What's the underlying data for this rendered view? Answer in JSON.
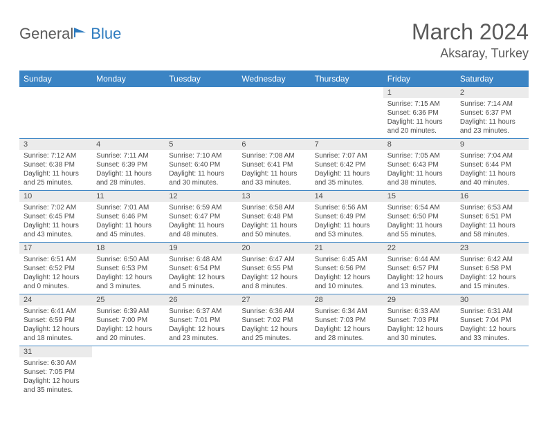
{
  "logo": {
    "part1": "General",
    "part2": "Blue"
  },
  "title": "March 2024",
  "location": "Aksaray, Turkey",
  "colors": {
    "header_bg": "#3b84c4",
    "header_text": "#ffffff",
    "daynum_bg": "#ebebeb",
    "row_border": "#3b84c4",
    "text": "#4a4a4a",
    "logo_accent": "#2d7bbf"
  },
  "dayNames": [
    "Sunday",
    "Monday",
    "Tuesday",
    "Wednesday",
    "Thursday",
    "Friday",
    "Saturday"
  ],
  "weeks": [
    [
      {
        "n": "",
        "sr": "",
        "ss": "",
        "dl": ""
      },
      {
        "n": "",
        "sr": "",
        "ss": "",
        "dl": ""
      },
      {
        "n": "",
        "sr": "",
        "ss": "",
        "dl": ""
      },
      {
        "n": "",
        "sr": "",
        "ss": "",
        "dl": ""
      },
      {
        "n": "",
        "sr": "",
        "ss": "",
        "dl": ""
      },
      {
        "n": "1",
        "sr": "Sunrise: 7:15 AM",
        "ss": "Sunset: 6:36 PM",
        "dl": "Daylight: 11 hours and 20 minutes."
      },
      {
        "n": "2",
        "sr": "Sunrise: 7:14 AM",
        "ss": "Sunset: 6:37 PM",
        "dl": "Daylight: 11 hours and 23 minutes."
      }
    ],
    [
      {
        "n": "3",
        "sr": "Sunrise: 7:12 AM",
        "ss": "Sunset: 6:38 PM",
        "dl": "Daylight: 11 hours and 25 minutes."
      },
      {
        "n": "4",
        "sr": "Sunrise: 7:11 AM",
        "ss": "Sunset: 6:39 PM",
        "dl": "Daylight: 11 hours and 28 minutes."
      },
      {
        "n": "5",
        "sr": "Sunrise: 7:10 AM",
        "ss": "Sunset: 6:40 PM",
        "dl": "Daylight: 11 hours and 30 minutes."
      },
      {
        "n": "6",
        "sr": "Sunrise: 7:08 AM",
        "ss": "Sunset: 6:41 PM",
        "dl": "Daylight: 11 hours and 33 minutes."
      },
      {
        "n": "7",
        "sr": "Sunrise: 7:07 AM",
        "ss": "Sunset: 6:42 PM",
        "dl": "Daylight: 11 hours and 35 minutes."
      },
      {
        "n": "8",
        "sr": "Sunrise: 7:05 AM",
        "ss": "Sunset: 6:43 PM",
        "dl": "Daylight: 11 hours and 38 minutes."
      },
      {
        "n": "9",
        "sr": "Sunrise: 7:04 AM",
        "ss": "Sunset: 6:44 PM",
        "dl": "Daylight: 11 hours and 40 minutes."
      }
    ],
    [
      {
        "n": "10",
        "sr": "Sunrise: 7:02 AM",
        "ss": "Sunset: 6:45 PM",
        "dl": "Daylight: 11 hours and 43 minutes."
      },
      {
        "n": "11",
        "sr": "Sunrise: 7:01 AM",
        "ss": "Sunset: 6:46 PM",
        "dl": "Daylight: 11 hours and 45 minutes."
      },
      {
        "n": "12",
        "sr": "Sunrise: 6:59 AM",
        "ss": "Sunset: 6:47 PM",
        "dl": "Daylight: 11 hours and 48 minutes."
      },
      {
        "n": "13",
        "sr": "Sunrise: 6:58 AM",
        "ss": "Sunset: 6:48 PM",
        "dl": "Daylight: 11 hours and 50 minutes."
      },
      {
        "n": "14",
        "sr": "Sunrise: 6:56 AM",
        "ss": "Sunset: 6:49 PM",
        "dl": "Daylight: 11 hours and 53 minutes."
      },
      {
        "n": "15",
        "sr": "Sunrise: 6:54 AM",
        "ss": "Sunset: 6:50 PM",
        "dl": "Daylight: 11 hours and 55 minutes."
      },
      {
        "n": "16",
        "sr": "Sunrise: 6:53 AM",
        "ss": "Sunset: 6:51 PM",
        "dl": "Daylight: 11 hours and 58 minutes."
      }
    ],
    [
      {
        "n": "17",
        "sr": "Sunrise: 6:51 AM",
        "ss": "Sunset: 6:52 PM",
        "dl": "Daylight: 12 hours and 0 minutes."
      },
      {
        "n": "18",
        "sr": "Sunrise: 6:50 AM",
        "ss": "Sunset: 6:53 PM",
        "dl": "Daylight: 12 hours and 3 minutes."
      },
      {
        "n": "19",
        "sr": "Sunrise: 6:48 AM",
        "ss": "Sunset: 6:54 PM",
        "dl": "Daylight: 12 hours and 5 minutes."
      },
      {
        "n": "20",
        "sr": "Sunrise: 6:47 AM",
        "ss": "Sunset: 6:55 PM",
        "dl": "Daylight: 12 hours and 8 minutes."
      },
      {
        "n": "21",
        "sr": "Sunrise: 6:45 AM",
        "ss": "Sunset: 6:56 PM",
        "dl": "Daylight: 12 hours and 10 minutes."
      },
      {
        "n": "22",
        "sr": "Sunrise: 6:44 AM",
        "ss": "Sunset: 6:57 PM",
        "dl": "Daylight: 12 hours and 13 minutes."
      },
      {
        "n": "23",
        "sr": "Sunrise: 6:42 AM",
        "ss": "Sunset: 6:58 PM",
        "dl": "Daylight: 12 hours and 15 minutes."
      }
    ],
    [
      {
        "n": "24",
        "sr": "Sunrise: 6:41 AM",
        "ss": "Sunset: 6:59 PM",
        "dl": "Daylight: 12 hours and 18 minutes."
      },
      {
        "n": "25",
        "sr": "Sunrise: 6:39 AM",
        "ss": "Sunset: 7:00 PM",
        "dl": "Daylight: 12 hours and 20 minutes."
      },
      {
        "n": "26",
        "sr": "Sunrise: 6:37 AM",
        "ss": "Sunset: 7:01 PM",
        "dl": "Daylight: 12 hours and 23 minutes."
      },
      {
        "n": "27",
        "sr": "Sunrise: 6:36 AM",
        "ss": "Sunset: 7:02 PM",
        "dl": "Daylight: 12 hours and 25 minutes."
      },
      {
        "n": "28",
        "sr": "Sunrise: 6:34 AM",
        "ss": "Sunset: 7:03 PM",
        "dl": "Daylight: 12 hours and 28 minutes."
      },
      {
        "n": "29",
        "sr": "Sunrise: 6:33 AM",
        "ss": "Sunset: 7:03 PM",
        "dl": "Daylight: 12 hours and 30 minutes."
      },
      {
        "n": "30",
        "sr": "Sunrise: 6:31 AM",
        "ss": "Sunset: 7:04 PM",
        "dl": "Daylight: 12 hours and 33 minutes."
      }
    ],
    [
      {
        "n": "31",
        "sr": "Sunrise: 6:30 AM",
        "ss": "Sunset: 7:05 PM",
        "dl": "Daylight: 12 hours and 35 minutes."
      },
      {
        "n": "",
        "sr": "",
        "ss": "",
        "dl": ""
      },
      {
        "n": "",
        "sr": "",
        "ss": "",
        "dl": ""
      },
      {
        "n": "",
        "sr": "",
        "ss": "",
        "dl": ""
      },
      {
        "n": "",
        "sr": "",
        "ss": "",
        "dl": ""
      },
      {
        "n": "",
        "sr": "",
        "ss": "",
        "dl": ""
      },
      {
        "n": "",
        "sr": "",
        "ss": "",
        "dl": ""
      }
    ]
  ]
}
